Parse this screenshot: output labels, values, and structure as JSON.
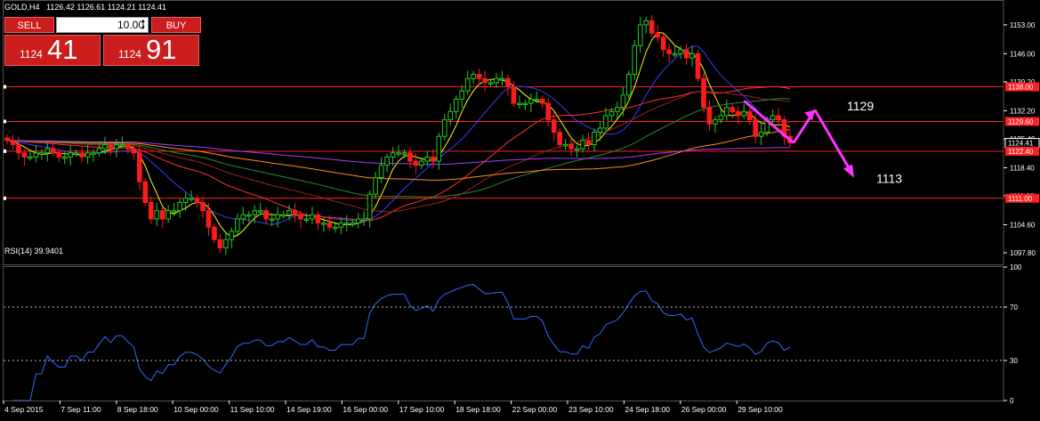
{
  "header": {
    "symbol": "GOLD,H4",
    "ohlc": "1126.42 1126.61 1124.21 1124.41"
  },
  "trade_panel": {
    "sell_label": "SELL",
    "buy_label": "BUY",
    "lot_value": "10.00",
    "sell_price_prefix": "1124",
    "sell_price_big": "41",
    "buy_price_prefix": "1124",
    "buy_price_big": "91"
  },
  "colors": {
    "background": "#000000",
    "bull_candle": "#22cc22",
    "bear_candle": "#ff1a1a",
    "level_line": "#ff2020",
    "arrow": "#ff33ff",
    "rsi_line": "#2f6bff",
    "axis_text": "#ffffff"
  },
  "chart_data": {
    "type": "candlestick",
    "title": "GOLD,H4",
    "ylim": [
      1095,
      1156
    ],
    "y_ticks": [
      "1153.00",
      "1146.00",
      "1139.20",
      "1132.20",
      "1125.40",
      "1118.40",
      "1111.60",
      "1104.60",
      "1097.80"
    ],
    "price_tags": [
      "1138.00",
      "1129.60",
      "1124.41",
      "1122.40",
      "1111.00"
    ],
    "levels": [
      1138.0,
      1129.6,
      1122.4,
      1111.0
    ],
    "annotations": [
      {
        "text": "1129",
        "price": 1133.2
      },
      {
        "text": "1113",
        "price": 1115.6
      }
    ],
    "x_labels": [
      "4 Sep 2015",
      "7 Sep 11:00",
      "8 Sep 18:00",
      "10 Sep 00:00",
      "11 Sep 10:00",
      "14 Sep 19:00",
      "16 Sep 00:00",
      "17 Sep 10:00",
      "18 Sep 18:00",
      "22 Sep 00:00",
      "23 Sep 10:00",
      "24 Sep 18:00",
      "26 Sep 00:00",
      "29 Sep 10:00"
    ],
    "closes": [
      1125,
      1124,
      1122,
      1121,
      1121,
      1122,
      1122,
      1123,
      1122,
      1121,
      1121,
      1122,
      1122,
      1121,
      1122,
      1122,
      1123,
      1124,
      1123,
      1124,
      1124,
      1123,
      1122,
      1115,
      1110,
      1106,
      1108,
      1106,
      1108,
      1108,
      1110,
      1111,
      1111,
      1110,
      1108,
      1104,
      1101,
      1099,
      1101,
      1103,
      1106,
      1107,
      1107,
      1108,
      1108,
      1106,
      1106,
      1107,
      1107,
      1108,
      1107,
      1106,
      1106,
      1107,
      1105,
      1105,
      1104,
      1104,
      1105,
      1105,
      1105,
      1106,
      1106,
      1112,
      1116,
      1119,
      1121,
      1122,
      1122,
      1122,
      1120,
      1119,
      1120,
      1121,
      1120,
      1126,
      1130,
      1132,
      1135,
      1137,
      1140,
      1141,
      1140,
      1139,
      1139,
      1140,
      1140,
      1138,
      1134,
      1134,
      1134,
      1135,
      1135,
      1134,
      1130,
      1127,
      1124,
      1124,
      1123,
      1123,
      1125,
      1124,
      1127,
      1128,
      1131,
      1132,
      1133,
      1136,
      1141,
      1148,
      1153,
      1154,
      1151,
      1150,
      1147,
      1146,
      1146,
      1147,
      1145,
      1146,
      1140,
      1133,
      1129,
      1130,
      1131,
      1133,
      1132,
      1131,
      1132,
      1130,
      1126,
      1127,
      1130,
      1131,
      1130,
      1126,
      1124.41
    ],
    "rsi": {
      "label": "RSI(14) 39.9401",
      "period": 14,
      "value": 39.9401,
      "ylim": [
        0,
        100
      ],
      "ticks": [
        "100",
        "70",
        "30",
        "0"
      ],
      "levels": [
        70,
        30
      ]
    },
    "moving_averages": [
      {
        "color": "#ffff00",
        "period": 5
      },
      {
        "color": "#3a3aff",
        "period": 12
      },
      {
        "color": "#ff3030",
        "period": 30
      },
      {
        "color": "#a02020",
        "period": 45
      },
      {
        "color": "#2e8b2e",
        "period": 60
      },
      {
        "color": "#ff8c1a",
        "period": 90
      },
      {
        "color": "#a040ff",
        "period": 150
      }
    ]
  }
}
